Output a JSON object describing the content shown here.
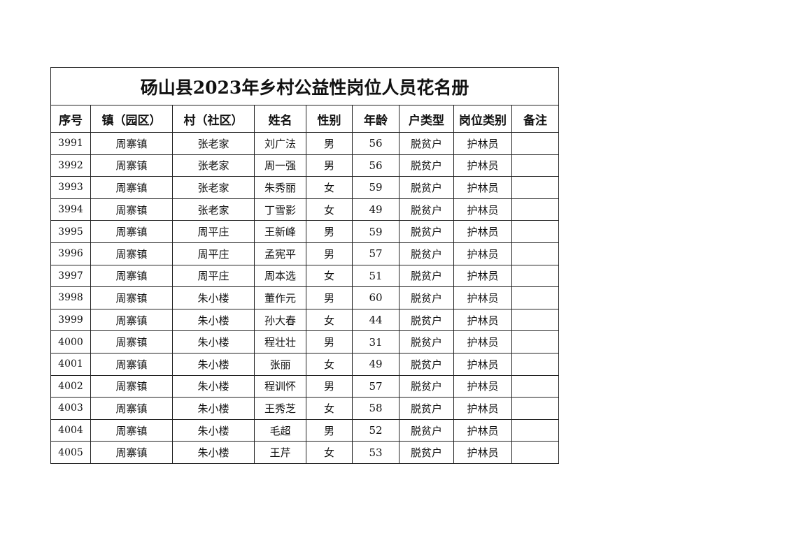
{
  "title": "砀山县2023年乡村公益性岗位人员花名册",
  "columns": [
    "序号",
    "镇（园区）",
    "村（社区）",
    "姓名",
    "性别",
    "年龄",
    "户类型",
    "岗位类别",
    "备注"
  ],
  "rows": [
    [
      "3991",
      "周寨镇",
      "张老家",
      "刘广法",
      "男",
      "56",
      "脱贫户",
      "护林员",
      ""
    ],
    [
      "3992",
      "周寨镇",
      "张老家",
      "周一强",
      "男",
      "56",
      "脱贫户",
      "护林员",
      ""
    ],
    [
      "3993",
      "周寨镇",
      "张老家",
      "朱秀丽",
      "女",
      "59",
      "脱贫户",
      "护林员",
      ""
    ],
    [
      "3994",
      "周寨镇",
      "张老家",
      "丁雪影",
      "女",
      "49",
      "脱贫户",
      "护林员",
      ""
    ],
    [
      "3995",
      "周寨镇",
      "周平庄",
      "王新峰",
      "男",
      "59",
      "脱贫户",
      "护林员",
      ""
    ],
    [
      "3996",
      "周寨镇",
      "周平庄",
      "孟宪平",
      "男",
      "57",
      "脱贫户",
      "护林员",
      ""
    ],
    [
      "3997",
      "周寨镇",
      "周平庄",
      "周本选",
      "女",
      "51",
      "脱贫户",
      "护林员",
      ""
    ],
    [
      "3998",
      "周寨镇",
      "朱小楼",
      "董作元",
      "男",
      "60",
      "脱贫户",
      "护林员",
      ""
    ],
    [
      "3999",
      "周寨镇",
      "朱小楼",
      "孙大春",
      "女",
      "44",
      "脱贫户",
      "护林员",
      ""
    ],
    [
      "4000",
      "周寨镇",
      "朱小楼",
      "程壮壮",
      "男",
      "31",
      "脱贫户",
      "护林员",
      ""
    ],
    [
      "4001",
      "周寨镇",
      "朱小楼",
      "张丽",
      "女",
      "49",
      "脱贫户",
      "护林员",
      ""
    ],
    [
      "4002",
      "周寨镇",
      "朱小楼",
      "程训怀",
      "男",
      "57",
      "脱贫户",
      "护林员",
      ""
    ],
    [
      "4003",
      "周寨镇",
      "朱小楼",
      "王秀芝",
      "女",
      "58",
      "脱贫户",
      "护林员",
      ""
    ],
    [
      "4004",
      "周寨镇",
      "朱小楼",
      "毛超",
      "男",
      "52",
      "脱贫户",
      "护林员",
      ""
    ],
    [
      "4005",
      "周寨镇",
      "朱小楼",
      "王芹",
      "女",
      "53",
      "脱贫户",
      "护林员",
      ""
    ]
  ]
}
